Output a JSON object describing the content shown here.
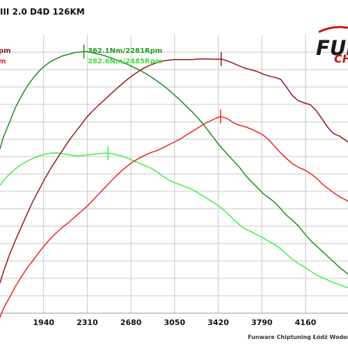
{
  "chart_data": {
    "type": "line",
    "title": "III 2.0 D4D 126KM",
    "logo_text_top": "FUN",
    "logo_text_bottom": "CH",
    "footer": "Funware Chiptuning Łódź Wodorov",
    "x_ticks": [
      "1940",
      "2310",
      "2680",
      "3050",
      "3420",
      "3790",
      "4160"
    ],
    "xlim": [
      1570,
      4520
    ],
    "ylim": [
      0,
      100
    ],
    "grid": true,
    "annotations": [
      {
        "text": "362.1Nm/2281Rpm",
        "color": "#229922"
      },
      {
        "text": "282.6Nm/2485Rpm",
        "color": "#44dd44"
      },
      {
        "text": "pm",
        "color": "#8b1a1a"
      },
      {
        "text": "m",
        "color": "#ee2222"
      }
    ],
    "series": [
      {
        "color": "#1f8a1f",
        "peak_x": 2281,
        "x": [
          1570,
          1600,
          1650,
          1700,
          1750,
          1800,
          1850,
          1900,
          1950,
          2000,
          2050,
          2100,
          2150,
          2200,
          2250,
          2281,
          2320,
          2350,
          2400,
          2450,
          2500,
          2550,
          2600,
          2650,
          2700,
          2750,
          2800,
          2850,
          2900,
          2950,
          3000,
          3050,
          3100,
          3150,
          3200,
          3250,
          3300,
          3350,
          3400,
          3450,
          3500,
          3550,
          3600,
          3650,
          3700,
          3750,
          3800,
          3850,
          3900,
          3950,
          4000,
          4050,
          4100,
          4150,
          4200,
          4250,
          4300,
          4350,
          4400,
          4450,
          4500,
          4520
        ],
        "y": [
          59.1,
          63.4,
          68.5,
          73.8,
          77.9,
          81.5,
          84.4,
          86.9,
          88.9,
          90.4,
          91.5,
          92.4,
          93.0,
          93.6,
          93.8,
          94.0,
          93.9,
          93.6,
          93.1,
          92.6,
          91.9,
          91.1,
          90.3,
          89.4,
          88.4,
          87.4,
          86.2,
          84.9,
          83.4,
          81.9,
          80.2,
          78.3,
          76.4,
          74.3,
          72.3,
          70.0,
          67.5,
          64.7,
          61.9,
          59.3,
          57.0,
          54.7,
          52.4,
          49.6,
          47.3,
          45.2,
          43.0,
          41.4,
          39.8,
          37.5,
          35.1,
          33.4,
          31.3,
          28.7,
          26.2,
          24.3,
          22.3,
          20.3,
          18.4,
          16.4,
          14.7,
          14.0
        ]
      },
      {
        "color": "#44ee44",
        "peak_x": 2485,
        "x": [
          1570,
          1600,
          1650,
          1700,
          1750,
          1800,
          1850,
          1900,
          1950,
          2000,
          2050,
          2100,
          2150,
          2200,
          2250,
          2300,
          2350,
          2400,
          2450,
          2485,
          2520,
          2550,
          2600,
          2650,
          2700,
          2750,
          2800,
          2850,
          2900,
          2950,
          3000,
          3050,
          3100,
          3150,
          3200,
          3250,
          3300,
          3350,
          3400,
          3450,
          3500,
          3550,
          3600,
          3650,
          3700,
          3750,
          3800,
          3850,
          3900,
          3950,
          4000,
          4050,
          4100,
          4150,
          4200,
          4250,
          4300,
          4350,
          4400,
          4450,
          4500,
          4520
        ],
        "y": [
          46.0,
          47.6,
          50.0,
          51.8,
          53.4,
          54.6,
          55.6,
          56.5,
          57.1,
          57.5,
          57.6,
          57.3,
          56.9,
          56.6,
          56.5,
          56.8,
          57.0,
          57.3,
          57.4,
          57.5,
          57.3,
          57.0,
          56.5,
          55.7,
          54.8,
          53.9,
          53.0,
          52.1,
          50.8,
          49.2,
          47.9,
          46.9,
          46.1,
          45.3,
          44.4,
          43.2,
          41.9,
          40.5,
          39.2,
          37.7,
          35.8,
          33.6,
          31.8,
          30.2,
          29.3,
          28.1,
          27.1,
          25.8,
          24.6,
          23.1,
          21.2,
          19.4,
          17.8,
          16.6,
          15.2,
          13.8,
          12.8,
          11.9,
          10.9,
          10.2,
          9.4,
          9.1
        ]
      },
      {
        "color": "#8b1a1a",
        "peak_x": 3445,
        "x": [
          1570,
          1600,
          1650,
          1700,
          1750,
          1800,
          1850,
          1900,
          1950,
          2000,
          2050,
          2100,
          2150,
          2200,
          2250,
          2300,
          2350,
          2400,
          2450,
          2500,
          2550,
          2600,
          2650,
          2700,
          2750,
          2800,
          2850,
          2900,
          2950,
          3000,
          3050,
          3100,
          3150,
          3200,
          3250,
          3300,
          3350,
          3400,
          3445,
          3500,
          3550,
          3600,
          3650,
          3700,
          3750,
          3800,
          3850,
          3900,
          3950,
          4000,
          4050,
          4100,
          4150,
          4200,
          4250,
          4300,
          4350,
          4400,
          4450,
          4500,
          4520
        ],
        "y": [
          10.9,
          15.0,
          21.0,
          26.1,
          30.9,
          35.7,
          40.3,
          44.3,
          48.3,
          52.0,
          55.3,
          58.5,
          61.7,
          64.6,
          67.3,
          70.1,
          72.4,
          74.5,
          76.4,
          78.4,
          80.3,
          82.2,
          84.0,
          85.6,
          87.0,
          88.3,
          89.2,
          90.0,
          90.6,
          90.9,
          91.1,
          91.1,
          91.1,
          91.1,
          91.3,
          91.3,
          91.3,
          91.2,
          91.3,
          90.6,
          89.7,
          88.8,
          88.0,
          87.4,
          86.8,
          85.9,
          85.2,
          84.7,
          84.0,
          81.1,
          78.1,
          76.3,
          75.5,
          74.9,
          72.8,
          69.8,
          66.7,
          64.4,
          63.6,
          62.1,
          61.5
        ]
      },
      {
        "color": "#ee2222",
        "peak_x": 3440,
        "x": [
          1570,
          1600,
          1650,
          1700,
          1750,
          1800,
          1850,
          1900,
          1950,
          2000,
          2050,
          2100,
          2150,
          2200,
          2250,
          2300,
          2350,
          2400,
          2450,
          2500,
          2550,
          2600,
          2650,
          2700,
          2750,
          2800,
          2850,
          2900,
          2950,
          3000,
          3050,
          3100,
          3150,
          3200,
          3250,
          3300,
          3350,
          3400,
          3440,
          3500,
          3550,
          3600,
          3650,
          3700,
          3750,
          3800,
          3850,
          3900,
          3950,
          4000,
          4050,
          4100,
          4150,
          4200,
          4250,
          4300,
          4350,
          4400,
          4450,
          4500,
          4520
        ],
        "y": [
          -1.4,
          1.8,
          5.6,
          9.6,
          13.0,
          16.2,
          19.0,
          21.8,
          24.5,
          26.9,
          29.0,
          30.9,
          32.5,
          34.4,
          36.3,
          38.1,
          40.2,
          42.5,
          44.7,
          46.9,
          49.1,
          51.1,
          52.9,
          54.4,
          55.7,
          56.8,
          57.7,
          58.4,
          59.4,
          60.5,
          61.5,
          62.6,
          64.0,
          65.3,
          66.6,
          68.0,
          69.0,
          70.0,
          70.7,
          69.8,
          68.4,
          67.5,
          67.0,
          66.1,
          65.1,
          64.0,
          62.2,
          59.9,
          57.5,
          55.5,
          53.7,
          52.4,
          51.5,
          50.2,
          48.6,
          46.5,
          44.8,
          43.2,
          41.8,
          40.7,
          40.2
        ]
      }
    ]
  }
}
